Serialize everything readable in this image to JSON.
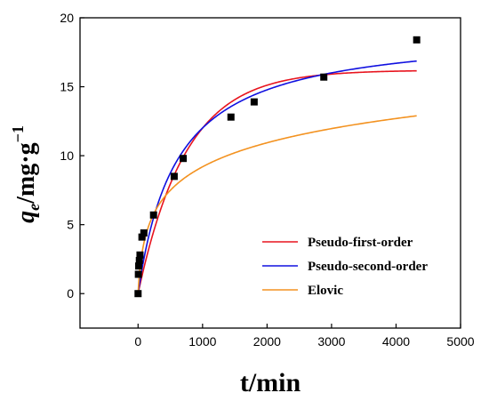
{
  "chart_data": {
    "type": "scatter",
    "xlabel": "t/min",
    "ylabel": {
      "main": "q",
      "sub": "e",
      "unit": "/mg·g",
      "sup": "−1"
    },
    "xlim": [
      -900,
      5000
    ],
    "ylim": [
      -2.5,
      20
    ],
    "xticks": [
      0,
      1000,
      2000,
      3000,
      4000,
      5000
    ],
    "yticks": [
      0,
      5,
      10,
      15,
      20
    ],
    "grid": false,
    "legend": "bottom-right",
    "experimental": {
      "color": "#000000",
      "x": [
        0,
        5,
        10,
        20,
        30,
        60,
        90,
        240,
        560,
        700,
        1440,
        1800,
        2880,
        4320
      ],
      "y": [
        0.0,
        1.4,
        2.0,
        2.4,
        2.8,
        4.1,
        4.4,
        5.7,
        8.5,
        9.8,
        12.8,
        13.9,
        15.7,
        18.4
      ]
    },
    "series": [
      {
        "name": "Pseudo-first-order",
        "color": "#e8141e",
        "model": "pfo",
        "qe": 16.2,
        "k1": 0.00135
      },
      {
        "name": "Pseudo-second-order",
        "color": "#1010e0",
        "model": "pso",
        "qe": 19.2,
        "k2": 8.7e-05
      },
      {
        "name": "Elovic",
        "color": "#f39220",
        "model": "elovich",
        "a": 0.09,
        "b": 0.39
      }
    ]
  }
}
